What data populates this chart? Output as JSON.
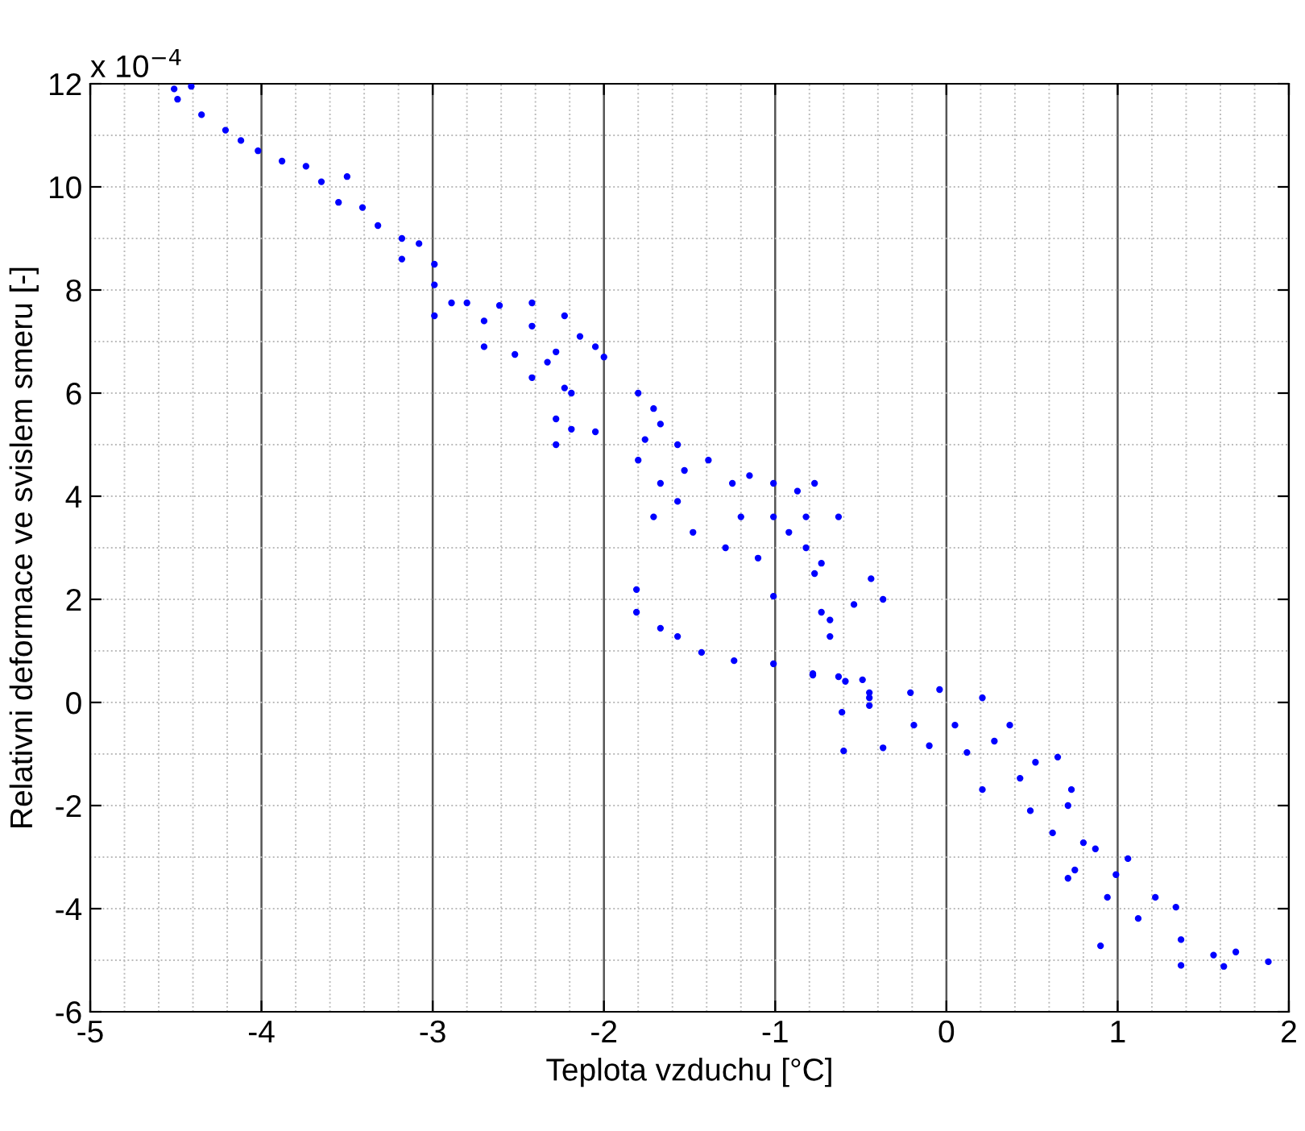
{
  "chart_data": {
    "type": "scatter",
    "xlabel": "Teplota vzduchu [°C]",
    "ylabel": "Relativni deformace ve svislem smeru [-]",
    "annotations": [
      "x 10$^{−4}$"
    ],
    "xlim": [
      -5,
      2
    ],
    "xticks": [
      -5,
      -4,
      -3,
      -2,
      -1,
      0,
      1,
      2
    ],
    "ylim": [
      -6,
      12
    ],
    "yticks": [
      -6,
      -4,
      -2,
      0,
      2,
      4,
      6,
      8,
      10,
      12
    ],
    "grid": true,
    "marker": "circle",
    "series": [
      {
        "color": "#0000ff",
        "x": [
          -4.41,
          -4.51,
          -4.49,
          -4.35,
          -4.21,
          -4.12,
          -4.02,
          -3.88,
          -3.74,
          -3.65,
          -3.5,
          -3.55,
          -3.41,
          -3.32,
          -3.18,
          -3.08,
          -3.18,
          -2.99,
          -2.99,
          -2.89,
          -2.99,
          -2.8,
          -2.61,
          -2.42,
          -2.23,
          -2.7,
          -2.42,
          -2.14,
          -2.05,
          -2.52,
          -2.28,
          -2.0,
          -2.7,
          -2.33,
          -2.23,
          -2.42,
          -2.19,
          -2.28,
          -2.19,
          -2.28,
          -2.05,
          -1.76,
          -1.57,
          -1.8,
          -1.71,
          -1.67,
          -1.8,
          -1.67,
          -1.57,
          -1.71,
          -1.48,
          -1.29,
          -1.25,
          -1.15,
          -1.01,
          -0.87,
          -0.77,
          -0.63,
          -0.44,
          -0.37,
          -0.54,
          -0.73,
          -1.01,
          -1.1,
          -0.92,
          -0.82,
          -1.2,
          -1.01,
          -0.73,
          -0.68,
          -0.68,
          -1.39,
          -1.53,
          -0.82,
          -0.77,
          -1.81,
          -1.81,
          -1.67,
          -1.57,
          -1.43,
          -1.24,
          -1.01,
          -0.78,
          -0.63,
          -0.49,
          -0.45,
          -0.45,
          -0.78,
          -0.59,
          -0.45,
          -0.61,
          -0.6,
          -0.37,
          -0.21,
          -0.04,
          0.21,
          0.37,
          0.65,
          0.73,
          0.71,
          0.49,
          0.21,
          -0.1,
          -0.19,
          0.12,
          0.43,
          0.05,
          0.52,
          0.28,
          0.62,
          0.75,
          0.94,
          1.12,
          1.37,
          1.56,
          1.88,
          1.37,
          1.62,
          0.8,
          0.99,
          1.22,
          1.34,
          0.87,
          1.06,
          0.9,
          0.71,
          1.69
        ],
        "values": [
          11.95,
          11.9,
          11.7,
          11.4,
          11.1,
          10.9,
          10.7,
          10.5,
          10.4,
          10.1,
          10.2,
          9.7,
          9.6,
          9.25,
          9.0,
          8.9,
          8.6,
          8.5,
          8.1,
          7.75,
          7.5,
          7.75,
          7.7,
          7.75,
          7.5,
          7.4,
          7.3,
          7.1,
          6.9,
          6.75,
          6.8,
          6.7,
          6.9,
          6.6,
          6.1,
          6.3,
          6.0,
          5.5,
          5.3,
          5.0,
          5.25,
          5.1,
          5.0,
          6.0,
          5.7,
          5.4,
          4.7,
          4.25,
          3.9,
          3.6,
          3.3,
          3.0,
          4.25,
          4.4,
          4.25,
          4.1,
          4.25,
          3.6,
          2.4,
          2.0,
          1.9,
          1.75,
          2.06,
          2.8,
          3.3,
          3.0,
          3.6,
          3.6,
          2.7,
          1.6,
          1.28,
          4.7,
          4.5,
          3.6,
          2.5,
          2.19,
          1.75,
          1.44,
          1.28,
          0.97,
          0.81,
          0.75,
          0.56,
          0.5,
          0.44,
          0.19,
          -0.06,
          0.53,
          0.41,
          0.09,
          -0.19,
          -0.94,
          -0.88,
          0.19,
          0.25,
          0.09,
          -0.44,
          -1.06,
          -1.69,
          -2.0,
          -2.1,
          -1.69,
          -0.84,
          -0.44,
          -0.97,
          -1.47,
          -0.44,
          -1.16,
          -0.75,
          -2.53,
          -3.25,
          -3.78,
          -4.19,
          -4.6,
          -4.9,
          -5.03,
          -5.1,
          -5.12,
          -2.72,
          -3.34,
          -3.78,
          -3.97,
          -2.84,
          -3.03,
          -4.72,
          -3.41,
          -4.84
        ]
      }
    ]
  }
}
